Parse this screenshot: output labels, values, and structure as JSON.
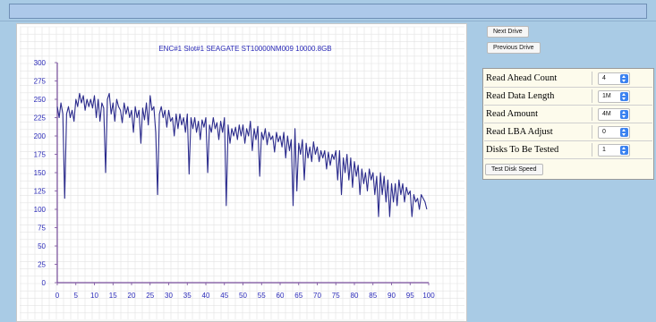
{
  "buttons": {
    "next_drive": "Next Drive",
    "previous_drive": "Previous Drive",
    "test_disk_speed": "Test Disk Speed"
  },
  "settings": [
    {
      "label": "Read Ahead Count",
      "value": "4"
    },
    {
      "label": "Read Data Length",
      "value": "1M"
    },
    {
      "label": "Read Amount",
      "value": "4M"
    },
    {
      "label": "Read LBA Adjust",
      "value": "0"
    },
    {
      "label": "Disks To Be Tested",
      "value": "1"
    }
  ],
  "colors": {
    "background": "#a9cbe5",
    "line": "#2b2b8c",
    "grid": "#e3e3e3",
    "axis": "#7a4f9e",
    "select_arrow": "#3b82f0"
  },
  "chart_data": {
    "type": "line",
    "title": "ENC#1 Slot#1 SEAGATE ST10000NM009 10000.8GB",
    "xlabel": "",
    "ylabel": "",
    "xlim": [
      0,
      100
    ],
    "ylim": [
      0,
      300
    ],
    "x_ticks": [
      0,
      5,
      10,
      15,
      20,
      25,
      30,
      35,
      40,
      45,
      50,
      55,
      60,
      65,
      70,
      75,
      80,
      85,
      90,
      95,
      100
    ],
    "y_ticks": [
      0,
      25,
      50,
      75,
      100,
      125,
      150,
      175,
      200,
      225,
      250,
      275,
      300
    ],
    "grid": true,
    "series": [
      {
        "values": [
          [
            0,
            240
          ],
          [
            0.5,
            225
          ],
          [
            1,
            245
          ],
          [
            1.5,
            230
          ],
          [
            2,
            115
          ],
          [
            2.5,
            230
          ],
          [
            3,
            240
          ],
          [
            3.5,
            225
          ],
          [
            4,
            235
          ],
          [
            4.5,
            220
          ],
          [
            5,
            250
          ],
          [
            5.5,
            240
          ],
          [
            6,
            258
          ],
          [
            6.5,
            245
          ],
          [
            7,
            255
          ],
          [
            7.5,
            235
          ],
          [
            8,
            250
          ],
          [
            8.5,
            240
          ],
          [
            9,
            250
          ],
          [
            9.5,
            238
          ],
          [
            10,
            255
          ],
          [
            10.5,
            225
          ],
          [
            11,
            250
          ],
          [
            11.5,
            220
          ],
          [
            12,
            245
          ],
          [
            12.5,
            238
          ],
          [
            13,
            150
          ],
          [
            13.5,
            250
          ],
          [
            14,
            258
          ],
          [
            14.5,
            230
          ],
          [
            15,
            245
          ],
          [
            15.5,
            220
          ],
          [
            16,
            250
          ],
          [
            16.5,
            240
          ],
          [
            17,
            235
          ],
          [
            17.5,
            218
          ],
          [
            18,
            245
          ],
          [
            18.5,
            230
          ],
          [
            19,
            240
          ],
          [
            19.5,
            225
          ],
          [
            20,
            235
          ],
          [
            20.5,
            205
          ],
          [
            21,
            240
          ],
          [
            21.5,
            225
          ],
          [
            22,
            235
          ],
          [
            22.5,
            190
          ],
          [
            23,
            238
          ],
          [
            23.5,
            222
          ],
          [
            24,
            245
          ],
          [
            24.5,
            215
          ],
          [
            25,
            255
          ],
          [
            25.5,
            235
          ],
          [
            26,
            240
          ],
          [
            26.5,
            205
          ],
          [
            27,
            120
          ],
          [
            27.5,
            230
          ],
          [
            28,
            240
          ],
          [
            28.5,
            225
          ],
          [
            29,
            235
          ],
          [
            29.5,
            212
          ],
          [
            30,
            235
          ],
          [
            30.5,
            220
          ],
          [
            31,
            225
          ],
          [
            31.5,
            200
          ],
          [
            32,
            230
          ],
          [
            32.5,
            210
          ],
          [
            33,
            230
          ],
          [
            33.5,
            215
          ],
          [
            34,
            225
          ],
          [
            34.5,
            205
          ],
          [
            35,
            230
          ],
          [
            35.5,
            148
          ],
          [
            36,
            225
          ],
          [
            36.5,
            210
          ],
          [
            37,
            225
          ],
          [
            37.5,
            205
          ],
          [
            38,
            220
          ],
          [
            38.5,
            195
          ],
          [
            39,
            222
          ],
          [
            39.5,
            212
          ],
          [
            40,
            225
          ],
          [
            40.5,
            150
          ],
          [
            41,
            215
          ],
          [
            41.5,
            205
          ],
          [
            42,
            225
          ],
          [
            42.5,
            210
          ],
          [
            43,
            218
          ],
          [
            43.5,
            195
          ],
          [
            44,
            220
          ],
          [
            44.5,
            205
          ],
          [
            45,
            225
          ],
          [
            45.5,
            105
          ],
          [
            46,
            215
          ],
          [
            46.5,
            190
          ],
          [
            47,
            210
          ],
          [
            47.5,
            200
          ],
          [
            48,
            212
          ],
          [
            48.5,
            195
          ],
          [
            49,
            215
          ],
          [
            49.5,
            200
          ],
          [
            50,
            215
          ],
          [
            50.5,
            190
          ],
          [
            51,
            210
          ],
          [
            51.5,
            200
          ],
          [
            52,
            220
          ],
          [
            52.5,
            180
          ],
          [
            53,
            210
          ],
          [
            53.5,
            195
          ],
          [
            54,
            213
          ],
          [
            54.5,
            145
          ],
          [
            55,
            205
          ],
          [
            55.5,
            195
          ],
          [
            56,
            210
          ],
          [
            56.5,
            188
          ],
          [
            57,
            205
          ],
          [
            57.5,
            195
          ],
          [
            58,
            200
          ],
          [
            58.5,
            178
          ],
          [
            59,
            205
          ],
          [
            59.5,
            192
          ],
          [
            60,
            200
          ],
          [
            60.5,
            185
          ],
          [
            61,
            205
          ],
          [
            61.5,
            170
          ],
          [
            62,
            200
          ],
          [
            62.5,
            180
          ],
          [
            63,
            195
          ],
          [
            63.5,
            105
          ],
          [
            64,
            210
          ],
          [
            64.5,
            125
          ],
          [
            65,
            190
          ],
          [
            65.5,
            175
          ],
          [
            66,
            195
          ],
          [
            66.5,
            140
          ],
          [
            67,
            190
          ],
          [
            67.5,
            170
          ],
          [
            68,
            185
          ],
          [
            68.5,
            165
          ],
          [
            69,
            192
          ],
          [
            69.5,
            175
          ],
          [
            70,
            185
          ],
          [
            70.5,
            165
          ],
          [
            71,
            180
          ],
          [
            71.5,
            170
          ],
          [
            72,
            180
          ],
          [
            72.5,
            155
          ],
          [
            73,
            178
          ],
          [
            73.5,
            160
          ],
          [
            74,
            175
          ],
          [
            74.5,
            168
          ],
          [
            75,
            180
          ],
          [
            75.5,
            140
          ],
          [
            76,
            180
          ],
          [
            76.5,
            120
          ],
          [
            77,
            170
          ],
          [
            77.5,
            150
          ],
          [
            78,
            175
          ],
          [
            78.5,
            140
          ],
          [
            79,
            170
          ],
          [
            79.5,
            130
          ],
          [
            80,
            165
          ],
          [
            80.5,
            145
          ],
          [
            81,
            160
          ],
          [
            81.5,
            120
          ],
          [
            82,
            155
          ],
          [
            82.5,
            135
          ],
          [
            83,
            150
          ],
          [
            83.5,
            125
          ],
          [
            84,
            155
          ],
          [
            84.5,
            140
          ],
          [
            85,
            150
          ],
          [
            85.5,
            120
          ],
          [
            86,
            145
          ],
          [
            86.5,
            90
          ],
          [
            87,
            150
          ],
          [
            87.5,
            120
          ],
          [
            88,
            145
          ],
          [
            88.5,
            110
          ],
          [
            89,
            140
          ],
          [
            89.5,
            90
          ],
          [
            90,
            135
          ],
          [
            90.5,
            110
          ],
          [
            91,
            135
          ],
          [
            91.5,
            105
          ],
          [
            92,
            140
          ],
          [
            92.5,
            120
          ],
          [
            93,
            135
          ],
          [
            93.5,
            110
          ],
          [
            94,
            130
          ],
          [
            94.5,
            120
          ],
          [
            95,
            125
          ],
          [
            95.5,
            90
          ],
          [
            96,
            120
          ],
          [
            96.5,
            110
          ],
          [
            97,
            115
          ],
          [
            97.5,
            100
          ],
          [
            98,
            120
          ],
          [
            98.5,
            115
          ],
          [
            99,
            110
          ],
          [
            99.5,
            100
          ]
        ]
      }
    ]
  }
}
